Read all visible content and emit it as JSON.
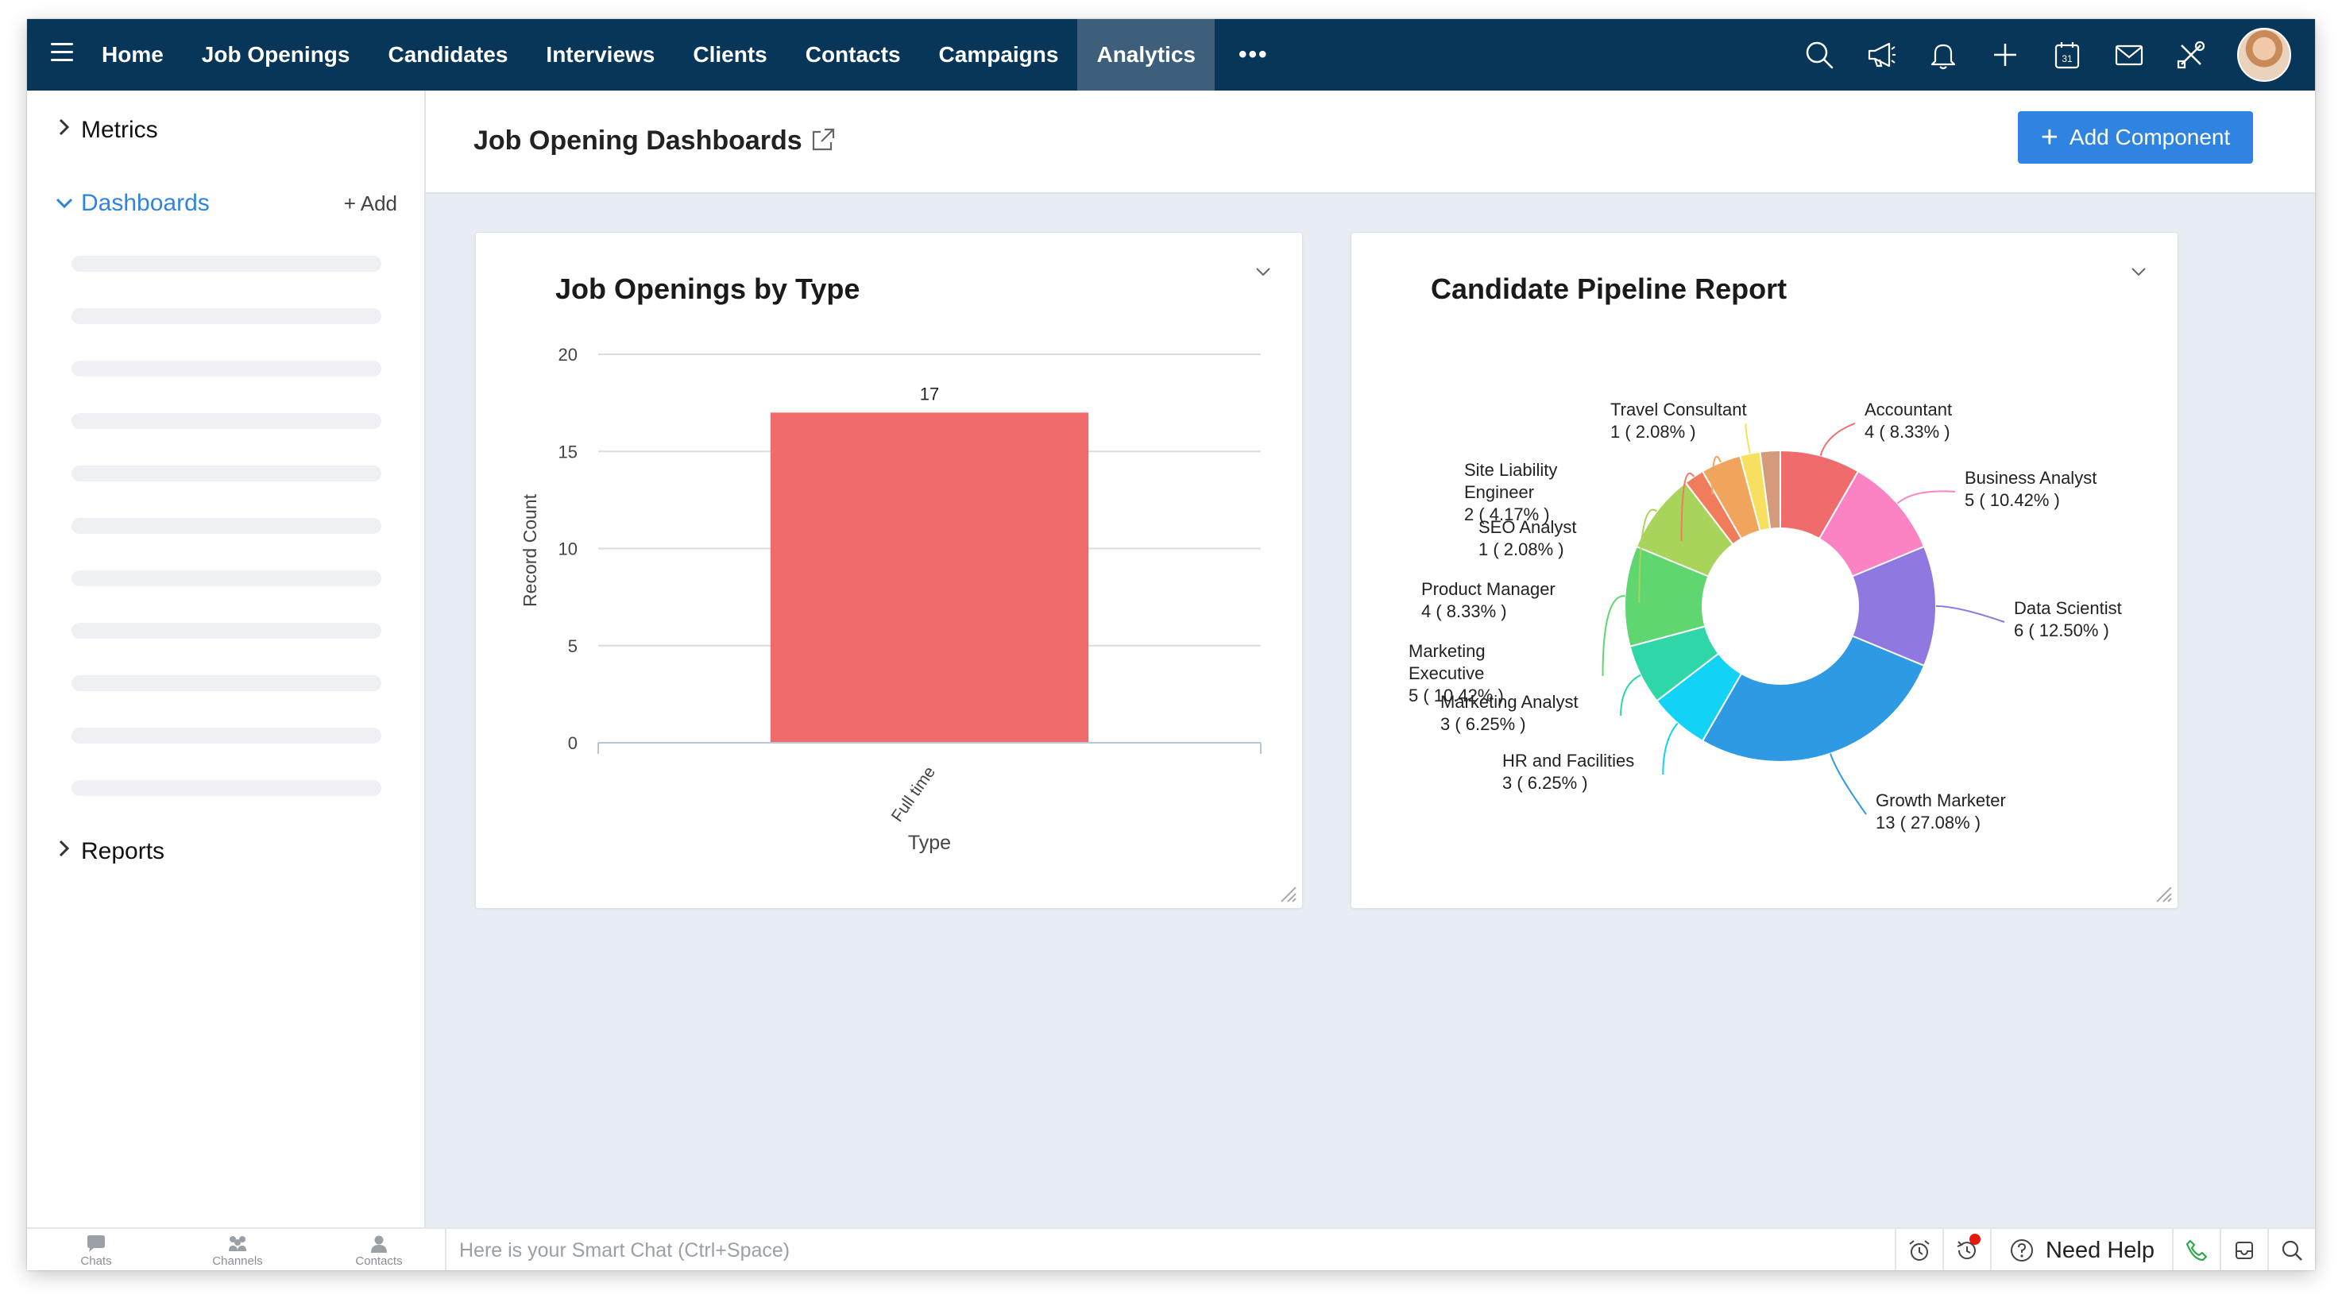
{
  "nav": {
    "tabs": [
      {
        "label": "Home",
        "active": false
      },
      {
        "label": "Job Openings",
        "active": false
      },
      {
        "label": "Candidates",
        "active": false
      },
      {
        "label": "Interviews",
        "active": false
      },
      {
        "label": "Clients",
        "active": false
      },
      {
        "label": "Contacts",
        "active": false
      },
      {
        "label": "Campaigns",
        "active": false
      },
      {
        "label": "Analytics",
        "active": true
      }
    ],
    "more_label": "•••",
    "icons": [
      "search-icon",
      "megaphone-icon",
      "bell-icon",
      "plus-icon",
      "calendar-icon",
      "mail-icon",
      "tools-icon"
    ],
    "calendar_day": "31"
  },
  "sidebar": {
    "metrics_label": "Metrics",
    "dashboards_label": "Dashboards",
    "add_label": "+ Add",
    "reports_label": "Reports",
    "skeleton_rows": 11
  },
  "page": {
    "title": "Job Opening Dashboards",
    "add_component_label": "Add Component"
  },
  "charts": {
    "bar": {
      "title": "Job Openings by Type",
      "xlabel": "Type",
      "ylabel": "Record Count"
    },
    "donut": {
      "title": "Candidate Pipeline Report"
    }
  },
  "chart_data": [
    {
      "type": "bar",
      "title": "Job Openings by Type",
      "categories": [
        "Full time"
      ],
      "values": [
        17
      ],
      "data_labels": [
        "17"
      ],
      "xlabel": "Type",
      "ylabel": "Record Count",
      "ylim": [
        0,
        20
      ],
      "yticks": [
        0,
        5,
        10,
        15,
        20
      ],
      "color": "#f06c6c",
      "grid": true
    },
    {
      "type": "pie",
      "style": "donut",
      "title": "Candidate Pipeline Report",
      "slices": [
        {
          "label": "Accountant",
          "value": 4,
          "pct": "( 8.33% )",
          "color": "#f06c6c"
        },
        {
          "label": "Business Analyst",
          "value": 5,
          "pct": "( 10.42% )",
          "color": "#fb83c4"
        },
        {
          "label": "Data Scientist",
          "value": 6,
          "pct": "( 12.50% )",
          "color": "#8f78e0"
        },
        {
          "label": "Growth Marketer",
          "value": 13,
          "pct": "( 27.08% )",
          "color": "#2d9ae3"
        },
        {
          "label": "HR and Facilities",
          "value": 3,
          "pct": "( 6.25% )",
          "color": "#12d2f5"
        },
        {
          "label": "Marketing Analyst",
          "value": 3,
          "pct": "( 6.25% )",
          "color": "#2fd6a8"
        },
        {
          "label": "Marketing Executive",
          "value": 5,
          "pct": "( 10.42% )",
          "color": "#5fd66f"
        },
        {
          "label": "Product Manager",
          "value": 4,
          "pct": "( 8.33% )",
          "color": "#a9d45c"
        },
        {
          "label": "SEO Analyst",
          "value": 1,
          "pct": "( 2.08% )",
          "color": "#f07c5c"
        },
        {
          "label": "Site Liability Engineer",
          "value": 2,
          "pct": "( 4.17% )",
          "color": "#f0a45c"
        },
        {
          "label": "Travel Consultant",
          "value": 1,
          "pct": "( 2.08% )",
          "color": "#f7e060"
        }
      ],
      "extra_slice": {
        "value": 1,
        "color": "#d39a7c"
      },
      "total": 48
    }
  ],
  "bottom": {
    "chats_label": "Chats",
    "channels_label": "Channels",
    "contacts_label": "Contacts",
    "smartchat_placeholder": "Here is your Smart Chat (Ctrl+Space)",
    "needhelp_label": "Need Help"
  }
}
